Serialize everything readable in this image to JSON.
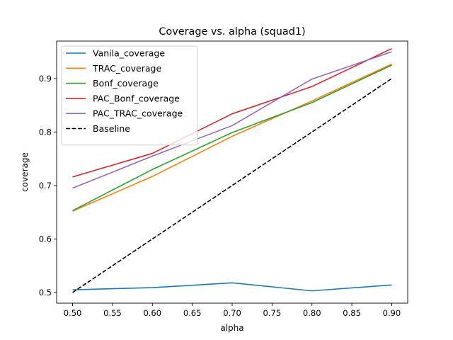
{
  "chart_data": {
    "type": "line",
    "title": "Coverage vs. alpha (squad1)",
    "xlabel": "alpha",
    "ylabel": "coverage",
    "xlim": [
      0.48,
      0.92
    ],
    "ylim": [
      0.48,
      0.97
    ],
    "xticks": [
      0.5,
      0.55,
      0.6,
      0.65,
      0.7,
      0.75,
      0.8,
      0.85,
      0.9
    ],
    "xtick_labels": [
      "0.50",
      "0.55",
      "0.60",
      "0.65",
      "0.70",
      "0.75",
      "0.80",
      "0.85",
      "0.90"
    ],
    "yticks": [
      0.5,
      0.6,
      0.7,
      0.8,
      0.9
    ],
    "ytick_labels": [
      "0.5",
      "0.6",
      "0.7",
      "0.8",
      "0.9"
    ],
    "grid": false,
    "legend_position": "top-left",
    "x": [
      0.5,
      0.6,
      0.7,
      0.8,
      0.9
    ],
    "series": [
      {
        "name": "Vanila_coverage",
        "color": "#1f77b4",
        "dash": "solid",
        "values": [
          0.505,
          0.509,
          0.518,
          0.503,
          0.514
        ]
      },
      {
        "name": "TRAC_coverage",
        "color": "#ff7f0e",
        "dash": "solid",
        "values": [
          0.652,
          0.717,
          0.792,
          0.858,
          0.927
        ]
      },
      {
        "name": "Bonf_coverage",
        "color": "#2ca02c",
        "dash": "solid",
        "values": [
          0.653,
          0.73,
          0.799,
          0.855,
          0.925
        ]
      },
      {
        "name": "PAC_Bonf_coverage",
        "color": "#d62728",
        "dash": "solid",
        "values": [
          0.716,
          0.76,
          0.834,
          0.885,
          0.956
        ]
      },
      {
        "name": "PAC_TRAC_coverage",
        "color": "#9467bd",
        "dash": "solid",
        "values": [
          0.695,
          0.755,
          0.812,
          0.899,
          0.95
        ]
      },
      {
        "name": "Baseline",
        "color": "#000000",
        "dash": "dashed",
        "values": [
          0.5,
          0.6,
          0.7,
          0.8,
          0.9
        ]
      }
    ]
  }
}
